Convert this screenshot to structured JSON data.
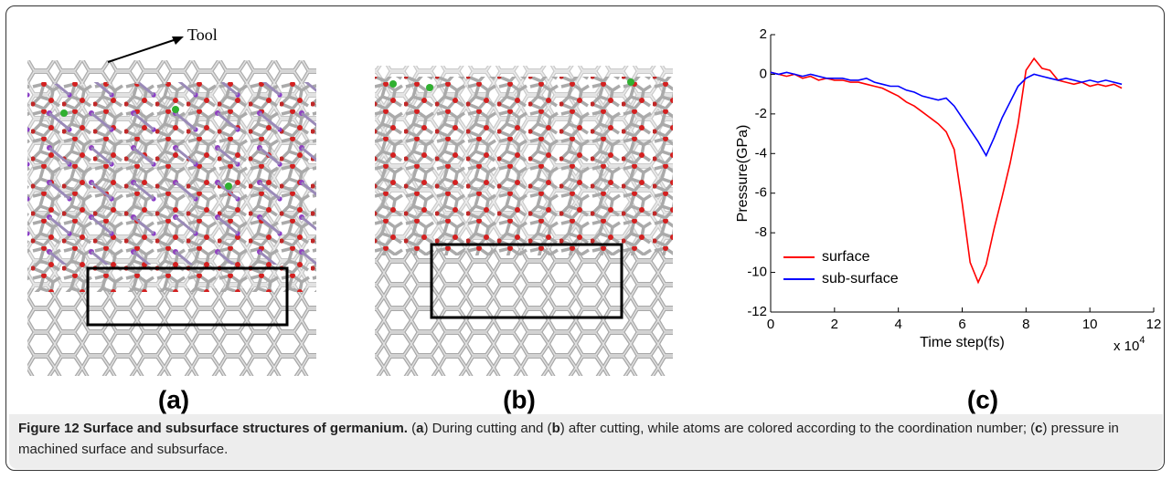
{
  "figure": {
    "tool_label": "Tool",
    "panel_labels": [
      "(a)",
      "(b)",
      "(c)"
    ],
    "caption": {
      "title": "Figure 12 Surface and subsurface structures of germanium.",
      "segments": [
        "(",
        "a",
        ") During cutting and (",
        "b",
        ") after cutting, while atoms are colored according to the coordination number; (",
        "c",
        ") pressure in machined surface and subsurface."
      ]
    }
  },
  "chart_data": {
    "type": "line",
    "xlabel": "Time step(fs)",
    "ylabel": "Pressure(GPa)",
    "x_scale": {
      "base": "x 10",
      "exponent": "4"
    },
    "xlim": [
      0,
      12
    ],
    "xticks": [
      0,
      2,
      4,
      6,
      8,
      10,
      12
    ],
    "ylim": [
      -12,
      2
    ],
    "yticks": [
      -12,
      -10,
      -8,
      -6,
      -4,
      -2,
      0,
      2
    ],
    "legend": "lower left",
    "x": [
      0,
      0.25,
      0.5,
      0.75,
      1,
      1.25,
      1.5,
      1.75,
      2,
      2.25,
      2.5,
      2.75,
      3,
      3.25,
      3.5,
      3.75,
      4,
      4.25,
      4.5,
      4.75,
      5,
      5.25,
      5.5,
      5.75,
      6,
      6.25,
      6.5,
      6.75,
      7,
      7.25,
      7.5,
      7.75,
      8,
      8.25,
      8.5,
      8.75,
      9,
      9.25,
      9.5,
      9.75,
      10,
      10.25,
      10.5,
      10.75,
      11
    ],
    "series": [
      {
        "name": "surface",
        "color": "#ff0000",
        "values": [
          0.1,
          0,
          -0.1,
          0,
          -0.2,
          -0.1,
          -0.3,
          -0.2,
          -0.3,
          -0.3,
          -0.4,
          -0.4,
          -0.5,
          -0.6,
          -0.7,
          -0.9,
          -1.1,
          -1.4,
          -1.6,
          -1.9,
          -2.2,
          -2.5,
          -2.9,
          -3.8,
          -6.5,
          -9.5,
          -10.5,
          -9.6,
          -7.8,
          -6.2,
          -4.5,
          -2.5,
          0.2,
          0.8,
          0.3,
          0.2,
          -0.3,
          -0.4,
          -0.5,
          -0.4,
          -0.6,
          -0.5,
          -0.6,
          -0.5,
          -0.7
        ]
      },
      {
        "name": "sub-surface",
        "color": "#0000ff",
        "values": [
          0.1,
          0,
          0.1,
          0,
          -0.1,
          0,
          -0.1,
          -0.2,
          -0.2,
          -0.2,
          -0.3,
          -0.3,
          -0.2,
          -0.4,
          -0.5,
          -0.6,
          -0.6,
          -0.8,
          -0.9,
          -1.1,
          -1.2,
          -1.3,
          -1.2,
          -1.6,
          -2.2,
          -2.8,
          -3.4,
          -4.1,
          -3.2,
          -2.2,
          -1.4,
          -0.6,
          -0.2,
          0,
          -0.1,
          -0.2,
          -0.3,
          -0.2,
          -0.3,
          -0.4,
          -0.3,
          -0.4,
          -0.3,
          -0.4,
          -0.5
        ]
      }
    ]
  }
}
